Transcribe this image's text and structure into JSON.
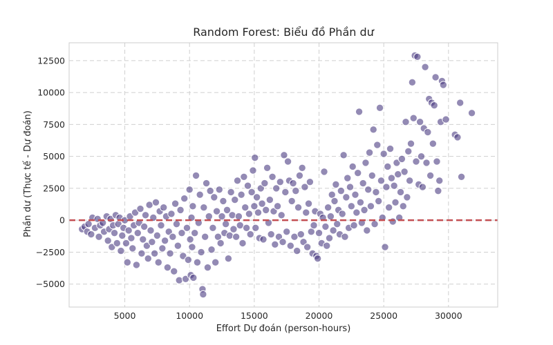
{
  "chart_data": {
    "type": "scatter",
    "title": "Random Forest: Biểu đồ Phần dư",
    "xlabel": "Effort Dự đoán (person-hours)",
    "ylabel": "Phần dư (Thực tế - Dự đoán)",
    "xlim": [
      700,
      33800
    ],
    "ylim": [
      -6800,
      13900
    ],
    "xticks": [
      5000,
      10000,
      15000,
      20000,
      25000,
      30000
    ],
    "xtick_labels": [
      "5000",
      "10000",
      "15000",
      "20000",
      "25000",
      "30000"
    ],
    "yticks": [
      -5000,
      -2500,
      0,
      2500,
      5000,
      7500,
      10000,
      12500
    ],
    "ytick_labels": [
      "−5000",
      "−2500",
      "0",
      "2500",
      "5000",
      "7500",
      "10000",
      "12500"
    ],
    "grid": true,
    "reference_line": {
      "y": 0,
      "style": "dashed",
      "color": "#c44e52"
    },
    "marker_color": "#4b3c82",
    "marker_opacity": 0.6,
    "points": [
      [
        1700,
        -700
      ],
      [
        1900,
        -500
      ],
      [
        2100,
        -900
      ],
      [
        2200,
        -300
      ],
      [
        2400,
        -1100
      ],
      [
        2500,
        200
      ],
      [
        2700,
        -600
      ],
      [
        2900,
        100
      ],
      [
        3000,
        -1300
      ],
      [
        3100,
        -400
      ],
      [
        3300,
        -200
      ],
      [
        3400,
        -900
      ],
      [
        3600,
        300
      ],
      [
        3700,
        -1600
      ],
      [
        3800,
        -700
      ],
      [
        3900,
        100
      ],
      [
        4000,
        -2100
      ],
      [
        4100,
        -400
      ],
      [
        4200,
        -1000
      ],
      [
        4300,
        400
      ],
      [
        4400,
        -1800
      ],
      [
        4500,
        -300
      ],
      [
        4600,
        200
      ],
      [
        4700,
        -2400
      ],
      [
        4800,
        -1200
      ],
      [
        4900,
        -600
      ],
      [
        5000,
        0
      ],
      [
        5100,
        -1800
      ],
      [
        5200,
        -3300
      ],
      [
        5300,
        -800
      ],
      [
        5400,
        300
      ],
      [
        5500,
        -1400
      ],
      [
        5600,
        -2200
      ],
      [
        5700,
        -400
      ],
      [
        5800,
        600
      ],
      [
        5900,
        -3500
      ],
      [
        6000,
        -1000
      ],
      [
        6100,
        -200
      ],
      [
        6200,
        900
      ],
      [
        6300,
        -2600
      ],
      [
        6400,
        -1500
      ],
      [
        6500,
        -500
      ],
      [
        6600,
        400
      ],
      [
        6700,
        -2000
      ],
      [
        6800,
        -3000
      ],
      [
        6900,
        1200
      ],
      [
        7000,
        -800
      ],
      [
        7100,
        -1700
      ],
      [
        7200,
        200
      ],
      [
        7300,
        -2600
      ],
      [
        7400,
        1400
      ],
      [
        7500,
        -1200
      ],
      [
        7600,
        -3300
      ],
      [
        7700,
        700
      ],
      [
        7800,
        -400
      ],
      [
        7900,
        -2200
      ],
      [
        8000,
        1000
      ],
      [
        8100,
        -1600
      ],
      [
        8200,
        300
      ],
      [
        8300,
        -3700
      ],
      [
        8400,
        -900
      ],
      [
        8500,
        -2600
      ],
      [
        8600,
        500
      ],
      [
        8700,
        -1300
      ],
      [
        8800,
        -4000
      ],
      [
        8900,
        1300
      ],
      [
        9000,
        -300
      ],
      [
        9100,
        -2000
      ],
      [
        9200,
        -4700
      ],
      [
        9300,
        800
      ],
      [
        9400,
        -1000
      ],
      [
        9500,
        -2800
      ],
      [
        9600,
        1700
      ],
      [
        9700,
        -4600
      ],
      [
        9800,
        -600
      ],
      [
        9900,
        -3100
      ],
      [
        10000,
        2400
      ],
      [
        10050,
        -1500
      ],
      [
        10100,
        -4300
      ],
      [
        10150,
        200
      ],
      [
        10200,
        -2100
      ],
      [
        10250,
        1100
      ],
      [
        10300,
        -4500
      ],
      [
        10400,
        -1000
      ],
      [
        10500,
        3500
      ],
      [
        10600,
        -3300
      ],
      [
        10700,
        -200
      ],
      [
        10800,
        2000
      ],
      [
        10900,
        -2500
      ],
      [
        11000,
        -5400
      ],
      [
        11050,
        -5800
      ],
      [
        11100,
        1000
      ],
      [
        11200,
        -1300
      ],
      [
        11300,
        2900
      ],
      [
        11400,
        -3700
      ],
      [
        11500,
        300
      ],
      [
        11600,
        2300
      ],
      [
        11700,
        -2300
      ],
      [
        11800,
        -600
      ],
      [
        11900,
        1800
      ],
      [
        12000,
        -3300
      ],
      [
        12100,
        700
      ],
      [
        12200,
        -1300
      ],
      [
        12300,
        2400
      ],
      [
        12400,
        -1800
      ],
      [
        12500,
        300
      ],
      [
        12600,
        1500
      ],
      [
        12700,
        -1000
      ],
      [
        12800,
        -300
      ],
      [
        12900,
        800
      ],
      [
        13000,
        -3000
      ],
      [
        13100,
        -1200
      ],
      [
        13200,
        2200
      ],
      [
        13300,
        400
      ],
      [
        13400,
        -700
      ],
      [
        13500,
        1600
      ],
      [
        13600,
        -1300
      ],
      [
        13700,
        3100
      ],
      [
        13800,
        300
      ],
      [
        13900,
        -400
      ],
      [
        14000,
        2000
      ],
      [
        14100,
        -1800
      ],
      [
        14200,
        3400
      ],
      [
        14300,
        1000
      ],
      [
        14400,
        -600
      ],
      [
        14500,
        2700
      ],
      [
        14600,
        500
      ],
      [
        14700,
        -1100
      ],
      [
        14800,
        2200
      ],
      [
        14900,
        3900
      ],
      [
        15000,
        1100
      ],
      [
        15050,
        4900
      ],
      [
        15100,
        -600
      ],
      [
        15200,
        1800
      ],
      [
        15300,
        600
      ],
      [
        15400,
        -1400
      ],
      [
        15500,
        2500
      ],
      [
        15600,
        1300
      ],
      [
        15700,
        -1500
      ],
      [
        15800,
        2900
      ],
      [
        15900,
        800
      ],
      [
        16000,
        4100
      ],
      [
        16100,
        -200
      ],
      [
        16200,
        1600
      ],
      [
        16300,
        -1100
      ],
      [
        16400,
        3400
      ],
      [
        16500,
        700
      ],
      [
        16600,
        -1900
      ],
      [
        16700,
        2500
      ],
      [
        16800,
        1100
      ],
      [
        16900,
        -1300
      ],
      [
        17000,
        3000
      ],
      [
        17100,
        400
      ],
      [
        17200,
        -1700
      ],
      [
        17300,
        5100
      ],
      [
        17400,
        2200
      ],
      [
        17500,
        -900
      ],
      [
        17600,
        4600
      ],
      [
        17700,
        3100
      ],
      [
        17800,
        -2000
      ],
      [
        17900,
        1500
      ],
      [
        18000,
        2900
      ],
      [
        18100,
        -1300
      ],
      [
        18200,
        2300
      ],
      [
        18300,
        -2400
      ],
      [
        18400,
        1000
      ],
      [
        18500,
        3500
      ],
      [
        18600,
        -1100
      ],
      [
        18700,
        4100
      ],
      [
        18800,
        -1700
      ],
      [
        18900,
        2600
      ],
      [
        19000,
        600
      ],
      [
        19100,
        -2100
      ],
      [
        19200,
        1300
      ],
      [
        19300,
        3000
      ],
      [
        19400,
        -900
      ],
      [
        19500,
        -2600
      ],
      [
        19600,
        -400
      ],
      [
        19700,
        700
      ],
      [
        19800,
        -2800
      ],
      [
        19900,
        -3000
      ],
      [
        20000,
        -1000
      ],
      [
        20100,
        500
      ],
      [
        20200,
        -1800
      ],
      [
        20300,
        200
      ],
      [
        20400,
        3800
      ],
      [
        20500,
        -500
      ],
      [
        20600,
        -2000
      ],
      [
        20700,
        1000
      ],
      [
        20800,
        -1400
      ],
      [
        20900,
        300
      ],
      [
        21000,
        2000
      ],
      [
        21100,
        -800
      ],
      [
        21200,
        1500
      ],
      [
        21300,
        2800
      ],
      [
        21400,
        -300
      ],
      [
        21500,
        800
      ],
      [
        21600,
        -1100
      ],
      [
        21700,
        2300
      ],
      [
        21800,
        500
      ],
      [
        21900,
        5100
      ],
      [
        22000,
        -1300
      ],
      [
        22100,
        1800
      ],
      [
        22200,
        3300
      ],
      [
        22300,
        -600
      ],
      [
        22400,
        2600
      ],
      [
        22500,
        1100
      ],
      [
        22600,
        4200
      ],
      [
        22700,
        -400
      ],
      [
        22800,
        2000
      ],
      [
        22900,
        600
      ],
      [
        23000,
        3700
      ],
      [
        23100,
        8500
      ],
      [
        23200,
        1400
      ],
      [
        23300,
        -200
      ],
      [
        23400,
        2900
      ],
      [
        23500,
        800
      ],
      [
        23600,
        4500
      ],
      [
        23700,
        -800
      ],
      [
        23800,
        2400
      ],
      [
        23900,
        5300
      ],
      [
        24000,
        1100
      ],
      [
        24100,
        3500
      ],
      [
        24200,
        7100
      ],
      [
        24300,
        -300
      ],
      [
        24400,
        2200
      ],
      [
        24500,
        5900
      ],
      [
        24600,
        1500
      ],
      [
        24700,
        8800
      ],
      [
        24800,
        3100
      ],
      [
        24900,
        200
      ],
      [
        25000,
        5200
      ],
      [
        25100,
        -2100
      ],
      [
        25200,
        2600
      ],
      [
        25300,
        4200
      ],
      [
        25400,
        1000
      ],
      [
        25500,
        5600
      ],
      [
        25600,
        3300
      ],
      [
        25700,
        -100
      ],
      [
        25800,
        2700
      ],
      [
        25900,
        1400
      ],
      [
        26000,
        4500
      ],
      [
        26100,
        3600
      ],
      [
        26200,
        200
      ],
      [
        26300,
        2200
      ],
      [
        26400,
        4800
      ],
      [
        26500,
        1100
      ],
      [
        26600,
        3800
      ],
      [
        26700,
        7700
      ],
      [
        26800,
        1800
      ],
      [
        26900,
        5400
      ],
      [
        27000,
        3100
      ],
      [
        27100,
        6000
      ],
      [
        27200,
        10800
      ],
      [
        27300,
        8000
      ],
      [
        27400,
        12900
      ],
      [
        27500,
        4600
      ],
      [
        27600,
        12800
      ],
      [
        27700,
        2800
      ],
      [
        27800,
        7700
      ],
      [
        27900,
        5000
      ],
      [
        28000,
        2600
      ],
      [
        28100,
        7200
      ],
      [
        28200,
        12000
      ],
      [
        28300,
        4500
      ],
      [
        28400,
        6900
      ],
      [
        28500,
        9500
      ],
      [
        28600,
        3500
      ],
      [
        28700,
        9200
      ],
      [
        28800,
        6000
      ],
      [
        28900,
        9000
      ],
      [
        29000,
        11200
      ],
      [
        29100,
        4600
      ],
      [
        29200,
        2300
      ],
      [
        29300,
        3100
      ],
      [
        29400,
        7700
      ],
      [
        29500,
        10900
      ],
      [
        29600,
        10600
      ],
      [
        29800,
        7900
      ],
      [
        30500,
        6700
      ],
      [
        30700,
        6500
      ],
      [
        30900,
        9200
      ],
      [
        31000,
        3400
      ],
      [
        31800,
        8400
      ]
    ]
  }
}
